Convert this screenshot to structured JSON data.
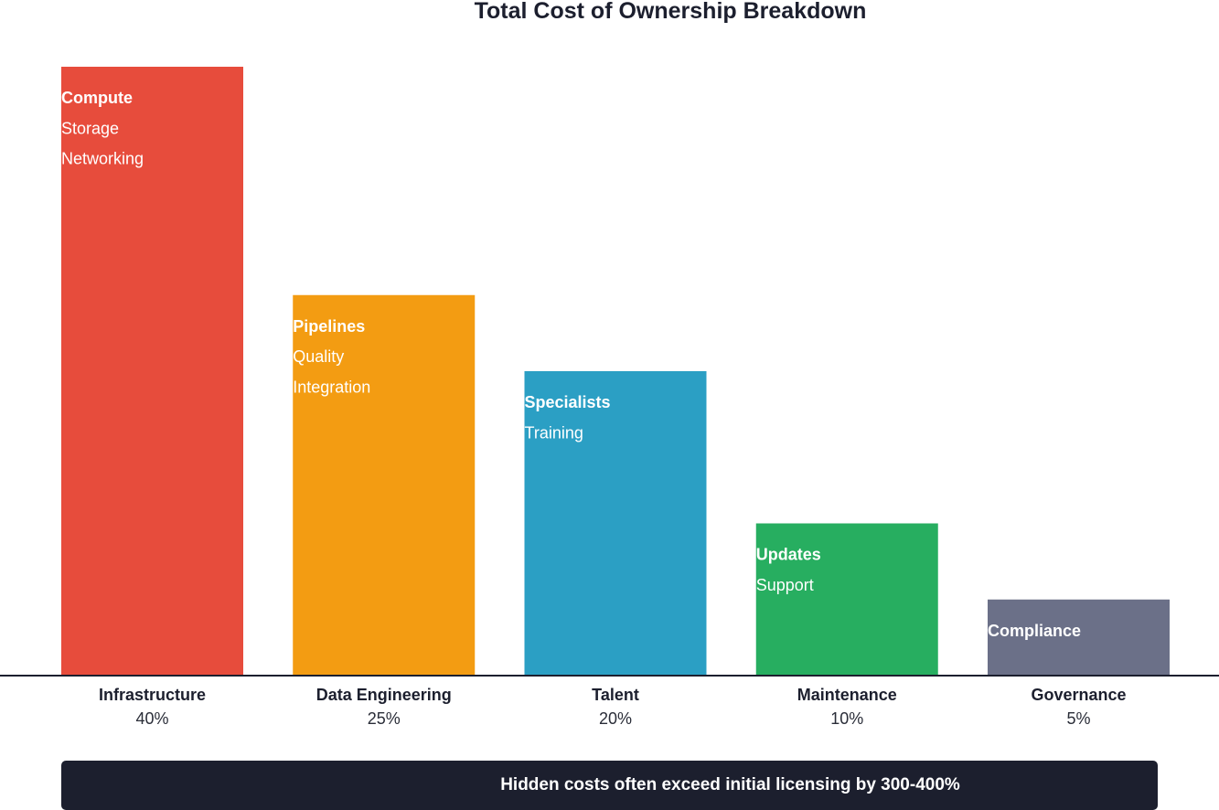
{
  "chart_data": {
    "type": "bar",
    "title": "Total Cost of Ownership Breakdown",
    "categories": [
      "Infrastructure",
      "Data Engineering",
      "Talent",
      "Maintenance",
      "Governance"
    ],
    "values": [
      40,
      25,
      20,
      10,
      5
    ],
    "value_labels": [
      "40%",
      "25%",
      "20%",
      "10%",
      "5%"
    ],
    "colors": [
      "#e74c3c",
      "#f39c12",
      "#2b9fc4",
      "#27ae60",
      "#6b7088"
    ],
    "bar_items": [
      [
        "Compute",
        "Storage",
        "Networking"
      ],
      [
        "Pipelines",
        "Quality",
        "Integration"
      ],
      [
        "Specialists",
        "Training"
      ],
      [
        "Updates",
        "Support"
      ],
      [
        "Compliance"
      ]
    ],
    "ylim": [
      0,
      40
    ],
    "grid": false,
    "legend": "none"
  },
  "banner": {
    "text": "Hidden costs often exceed initial licensing by 300-400%"
  }
}
